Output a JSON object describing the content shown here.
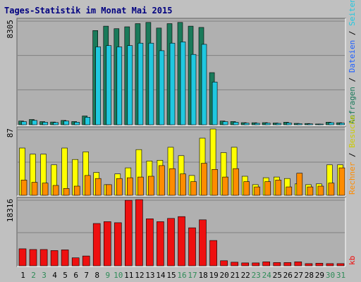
{
  "chart_data": {
    "type": "bar",
    "title": "Tages-Statistik im Monat Mai 2015",
    "colors": {
      "background": "#c0c0c0",
      "panel": "#b0b0b0",
      "grid": "#808080",
      "anfragen": "#1a7a5a",
      "dateien": "#20c8e0",
      "seiten": "#20b0c0",
      "besuche": "#ffff00",
      "rechner": "#ff8c00",
      "kb": "#ee1010",
      "weekend": "#2e8b57",
      "weekday": "#000000",
      "title": "#000080"
    },
    "days": [
      "1",
      "2",
      "3",
      "4",
      "5",
      "6",
      "7",
      "8",
      "9",
      "10",
      "11",
      "12",
      "13",
      "14",
      "15",
      "16",
      "17",
      "18",
      "19",
      "20",
      "21",
      "22",
      "23",
      "24",
      "25",
      "26",
      "27",
      "28",
      "29",
      "30",
      "31"
    ],
    "weekend_days": [
      "2",
      "3",
      "9",
      "10",
      "16",
      "17",
      "23",
      "24",
      "30",
      "31"
    ],
    "top": {
      "ymax_label": "8305",
      "ymax": 8305,
      "right_labels": [
        {
          "text": "Anfragen",
          "color": "#1a7a5a"
        },
        {
          "text": "Dateien",
          "color": "#2060ff"
        },
        {
          "text": "Seiten",
          "color": "#20c8e0"
        }
      ],
      "separator": " / ",
      "series": [
        {
          "key": "anfragen",
          "values": [
            300,
            420,
            250,
            220,
            350,
            260,
            700,
            7500,
            7850,
            7650,
            7800,
            8050,
            8150,
            7700,
            8050,
            8150,
            7850,
            7750,
            4150,
            300,
            260,
            170,
            160,
            170,
            140,
            200,
            110,
            100,
            60,
            210,
            160
          ]
        },
        {
          "key": "dateien",
          "values": [
            250,
            350,
            200,
            180,
            300,
            210,
            600,
            6200,
            6300,
            6200,
            6300,
            6500,
            6500,
            5900,
            6500,
            6600,
            5600,
            6400,
            3400,
            250,
            200,
            130,
            120,
            130,
            110,
            150,
            90,
            80,
            50,
            170,
            130
          ]
        }
      ]
    },
    "middle": {
      "ymax_label": "87",
      "ymax": 87,
      "right_labels": [
        {
          "text": "Rechner",
          "color": "#ff8c00"
        },
        {
          "text": "Besuche",
          "color": "#cccc00"
        }
      ],
      "separator": " / ",
      "series": [
        {
          "key": "besuche",
          "values": [
            62,
            54,
            54,
            40,
            62,
            47,
            57,
            30,
            14,
            28,
            36,
            60,
            45,
            46,
            63,
            52,
            26,
            75,
            87,
            56,
            63,
            25,
            14,
            23,
            24,
            22,
            15,
            14,
            15,
            40,
            40
          ]
        },
        {
          "key": "rechner",
          "values": [
            20,
            17,
            16,
            13,
            9,
            12,
            26,
            22,
            14,
            22,
            23,
            24,
            25,
            39,
            35,
            28,
            18,
            42,
            34,
            24,
            35,
            18,
            11,
            18,
            20,
            11,
            29,
            11,
            12,
            16,
            36
          ]
        }
      ]
    },
    "bottom": {
      "ymax_label": "18316",
      "ymax": 18316,
      "right_labels": [
        {
          "text": "kb",
          "color": "#ee1010"
        }
      ],
      "separator": "",
      "series": [
        {
          "key": "kb",
          "values": [
            4700,
            4500,
            4500,
            4200,
            4400,
            2200,
            2700,
            11700,
            12200,
            11900,
            18100,
            18300,
            13000,
            12200,
            13100,
            13600,
            10500,
            12700,
            7000,
            1400,
            1000,
            800,
            800,
            1100,
            900,
            900,
            1100,
            600,
            700,
            600,
            600
          ]
        }
      ]
    }
  }
}
